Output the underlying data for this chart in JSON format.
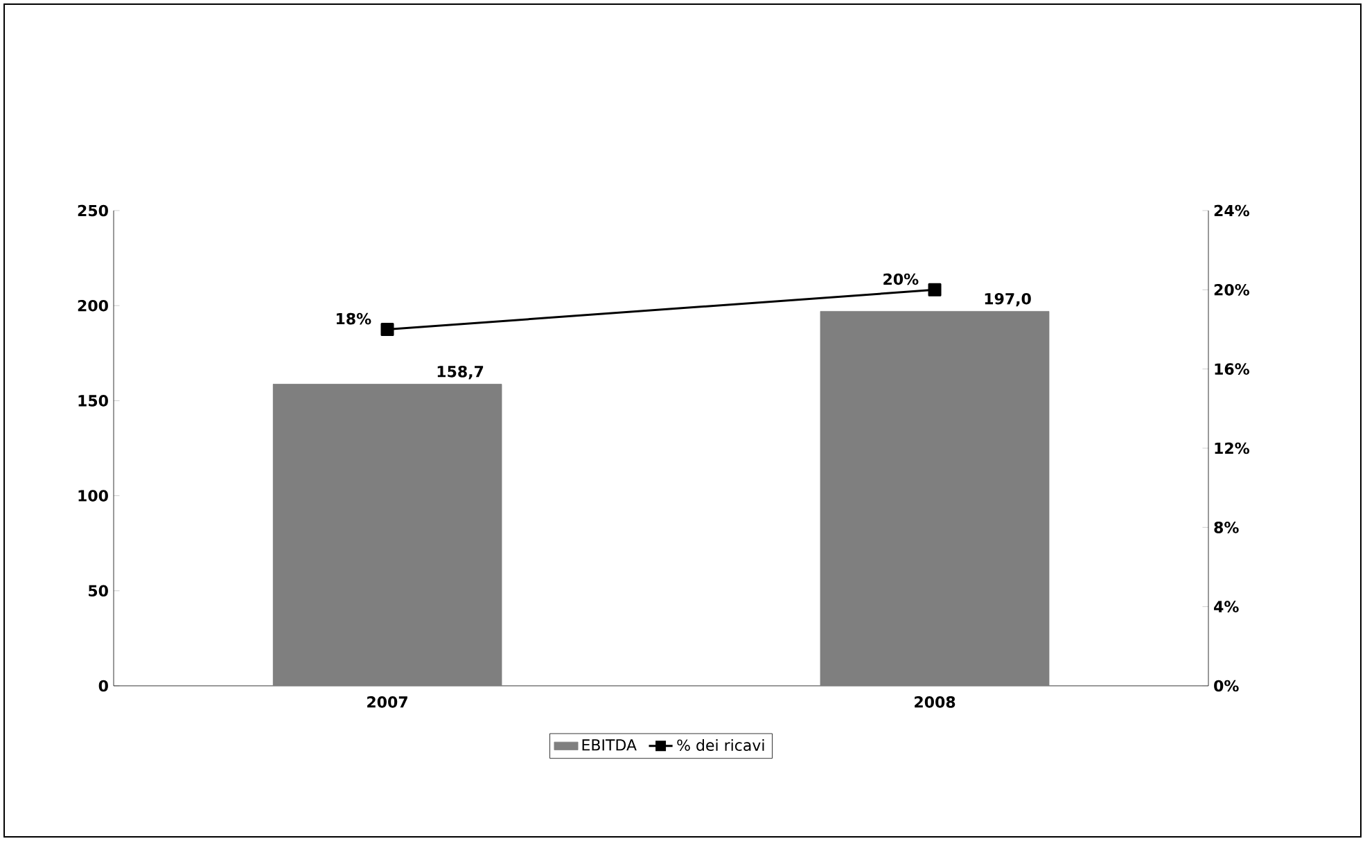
{
  "chart_data": {
    "type": "bar",
    "categories": [
      "2007",
      "2008"
    ],
    "series": [
      {
        "name": "EBITDA",
        "color": "#7f7f7f",
        "values": [
          158.7,
          197.0
        ],
        "value_labels": [
          "158,7",
          "197,0"
        ]
      },
      {
        "name": "% dei ricavi",
        "type": "line",
        "axis": "y2",
        "color": "#000000",
        "values": [
          18,
          20
        ],
        "value_labels": [
          "18%",
          "20%"
        ]
      }
    ],
    "ylim": [
      0,
      250
    ],
    "yticks": [
      0,
      50,
      100,
      150,
      200,
      250
    ],
    "y2lim": [
      0,
      24
    ],
    "y2ticks": [
      {
        "value": 0,
        "label": "0%"
      },
      {
        "value": 4,
        "label": "4%"
      },
      {
        "value": 8,
        "label": "8%"
      },
      {
        "value": 12,
        "label": "12%"
      },
      {
        "value": 16,
        "label": "16%"
      },
      {
        "value": 20,
        "label": "20%"
      },
      {
        "value": 24,
        "label": "24%"
      }
    ],
    "marker": "square",
    "legend": "bottom",
    "grid": false
  }
}
